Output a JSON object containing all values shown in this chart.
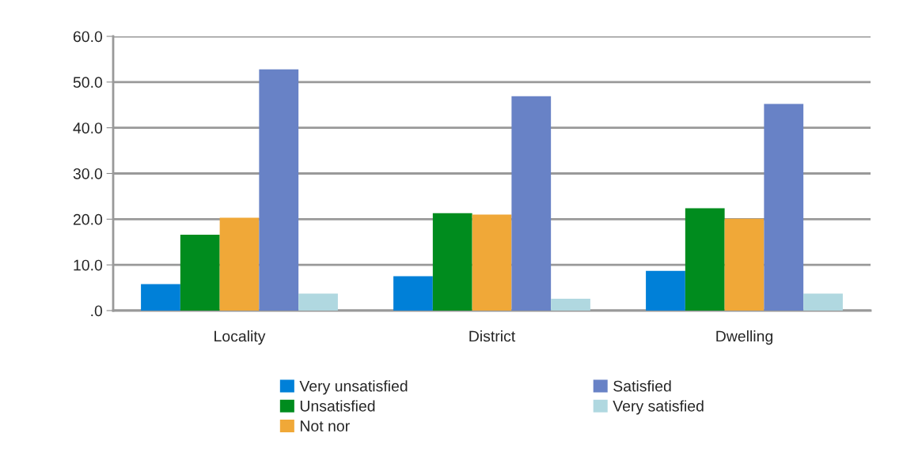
{
  "chart_data": {
    "type": "bar",
    "categories": [
      "Locality",
      "District",
      "Dwelling"
    ],
    "series": [
      {
        "name": "Very unsatisfied",
        "color": "#0080d8",
        "values": [
          5.8,
          7.5,
          8.7
        ]
      },
      {
        "name": "Unsatisfied",
        "color": "#008c1e",
        "values": [
          16.6,
          21.3,
          22.4
        ]
      },
      {
        "name": "Not nor",
        "color": "#f0a838",
        "values": [
          20.3,
          21.0,
          20.1
        ]
      },
      {
        "name": "Satisfied",
        "color": "#6882c6",
        "values": [
          52.8,
          46.9,
          45.2
        ]
      },
      {
        "name": "Very satisfied",
        "color": "#b0d8e0",
        "values": [
          3.7,
          2.6,
          3.7
        ]
      }
    ],
    "ylim": [
      0,
      60
    ],
    "yticks": [
      {
        "value": 0,
        "label": ".0"
      },
      {
        "value": 10,
        "label": "10.0"
      },
      {
        "value": 20,
        "label": "20.0"
      },
      {
        "value": 30,
        "label": "30.0"
      },
      {
        "value": 40,
        "label": "40.0"
      },
      {
        "value": 50,
        "label": "50.0"
      },
      {
        "value": 60,
        "label": "60.0"
      }
    ],
    "grid": "y",
    "legend": "bottom"
  }
}
